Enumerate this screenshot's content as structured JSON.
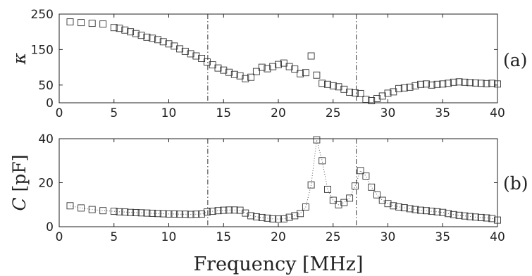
{
  "chart_data": [
    {
      "type": "scatter",
      "panel_label": "(a)",
      "ylabel": "κ",
      "xlabel": "",
      "xlim": [
        0,
        40
      ],
      "ylim": [
        0,
        250
      ],
      "xticks": [
        0,
        5,
        10,
        15,
        20,
        25,
        30,
        35,
        40
      ],
      "yticks": [
        0,
        50,
        150,
        250
      ],
      "vlines": [
        13.56,
        27.12
      ],
      "marker": "open-square",
      "series": [
        {
          "x": [
            1,
            2,
            3,
            4,
            5,
            5.5,
            6,
            6.5,
            7,
            7.5,
            8,
            8.5,
            9,
            9.5,
            10,
            10.5,
            11,
            11.5,
            12,
            12.5,
            13,
            13.5,
            14,
            14.5,
            15,
            15.5,
            16,
            16.5,
            17,
            17.5,
            18,
            18.5,
            19,
            19.5,
            20,
            20.5,
            21,
            21.5,
            22,
            22.5,
            23,
            23.5,
            24,
            24.5,
            25,
            25.5,
            26,
            26.5,
            27,
            27.5,
            28,
            28.5,
            29,
            29.5,
            30,
            30.5,
            31,
            31.5,
            32,
            32.5,
            33,
            33.5,
            34,
            34.5,
            35,
            35.5,
            36,
            36.5,
            37,
            37.5,
            38,
            38.5,
            39,
            39.5,
            40
          ],
          "y": [
            228,
            226,
            224,
            222,
            212,
            210,
            205,
            200,
            195,
            190,
            185,
            182,
            178,
            172,
            166,
            160,
            152,
            145,
            138,
            132,
            125,
            115,
            107,
            98,
            92,
            86,
            80,
            76,
            68,
            72,
            88,
            100,
            96,
            102,
            108,
            112,
            102,
            95,
            82,
            85,
            132,
            78,
            55,
            52,
            48,
            45,
            38,
            30,
            28,
            26,
            10,
            6,
            12,
            19,
            27,
            31,
            40,
            42,
            44,
            48,
            52,
            53,
            50,
            52,
            53,
            55,
            58,
            59,
            58,
            57,
            56,
            55,
            54,
            55,
            53
          ]
        }
      ]
    },
    {
      "type": "scatter",
      "panel_label": "(b)",
      "ylabel": "C [pF]",
      "xlabel": "Frequency [MHz]",
      "xlim": [
        0,
        40
      ],
      "ylim": [
        0,
        40
      ],
      "xticks": [
        0,
        5,
        10,
        15,
        20,
        25,
        30,
        35,
        40
      ],
      "yticks": [
        0,
        20,
        40
      ],
      "vlines": [
        13.56,
        27.12
      ],
      "marker": "open-square",
      "line": "dotted",
      "series": [
        {
          "x": [
            1,
            2,
            3,
            4,
            5,
            5.5,
            6,
            6.5,
            7,
            7.5,
            8,
            8.5,
            9,
            9.5,
            10,
            10.5,
            11,
            11.5,
            12,
            12.5,
            13,
            13.5,
            14,
            14.5,
            15,
            15.5,
            16,
            16.5,
            17,
            17.5,
            18,
            18.5,
            19,
            19.5,
            20,
            20.5,
            21,
            21.5,
            22,
            22.5,
            23,
            23.5,
            24,
            24.5,
            25,
            25.5,
            26,
            26.5,
            27,
            27.5,
            28,
            28.5,
            29,
            29.5,
            30,
            30.5,
            31,
            31.5,
            32,
            32.5,
            33,
            33.5,
            34,
            34.5,
            35,
            35.5,
            36,
            36.5,
            37,
            37.5,
            38,
            38.5,
            39,
            39.5,
            40
          ],
          "y": [
            9.5,
            8.5,
            7.8,
            7.3,
            7.0,
            6.8,
            6.7,
            6.5,
            6.4,
            6.3,
            6.2,
            6.1,
            6.0,
            5.9,
            5.8,
            5.8,
            5.7,
            5.7,
            5.6,
            5.7,
            5.8,
            6.7,
            7.0,
            7.3,
            7.5,
            7.6,
            7.6,
            7.5,
            6.2,
            5.0,
            4.5,
            4.2,
            3.9,
            3.6,
            3.5,
            3.6,
            4.3,
            5.0,
            6.0,
            9.0,
            19.0,
            39.5,
            30.0,
            17.0,
            12.0,
            10.0,
            11.0,
            13.0,
            18.5,
            25.5,
            23.0,
            18.0,
            14.5,
            12.0,
            10.5,
            9.5,
            9.0,
            8.6,
            8.2,
            7.8,
            7.5,
            7.3,
            7.0,
            6.8,
            6.5,
            6.0,
            5.5,
            5.2,
            4.9,
            4.6,
            4.4,
            4.2,
            4.0,
            3.7,
            3.0
          ]
        }
      ]
    }
  ]
}
